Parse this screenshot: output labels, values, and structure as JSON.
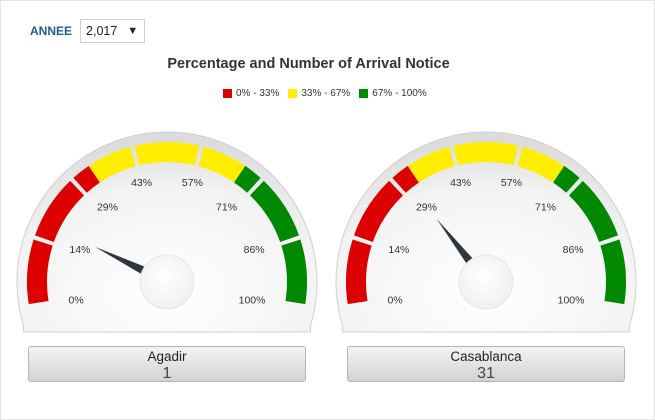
{
  "filter": {
    "label": "ANNEE",
    "selected": "2,017",
    "caret_icon": "caret-down-icon"
  },
  "chart_data": {
    "type": "gauge",
    "title": "Percentage and Number  of Arrival Notice",
    "legend": {
      "placement": "top-center",
      "items": [
        {
          "label": "0% - 33%",
          "color": "#dd0000"
        },
        {
          "label": "33% - 67%",
          "color": "#ffee00"
        },
        {
          "label": "67% - 100%",
          "color": "#008800"
        }
      ]
    },
    "range": [
      0,
      100
    ],
    "bands": [
      {
        "from": 0,
        "to": 33,
        "color": "#dd0000"
      },
      {
        "from": 33,
        "to": 67,
        "color": "#ffee00"
      },
      {
        "from": 67,
        "to": 100,
        "color": "#008800"
      }
    ],
    "tick_labels": [
      "0%",
      "14%",
      "29%",
      "43%",
      "57%",
      "71%",
      "86%",
      "100%"
    ],
    "gauges": [
      {
        "name": "Agadir",
        "value": 1,
        "needle_percent": 18
      },
      {
        "name": "Casablanca",
        "value": 31,
        "needle_percent": 31
      }
    ]
  }
}
